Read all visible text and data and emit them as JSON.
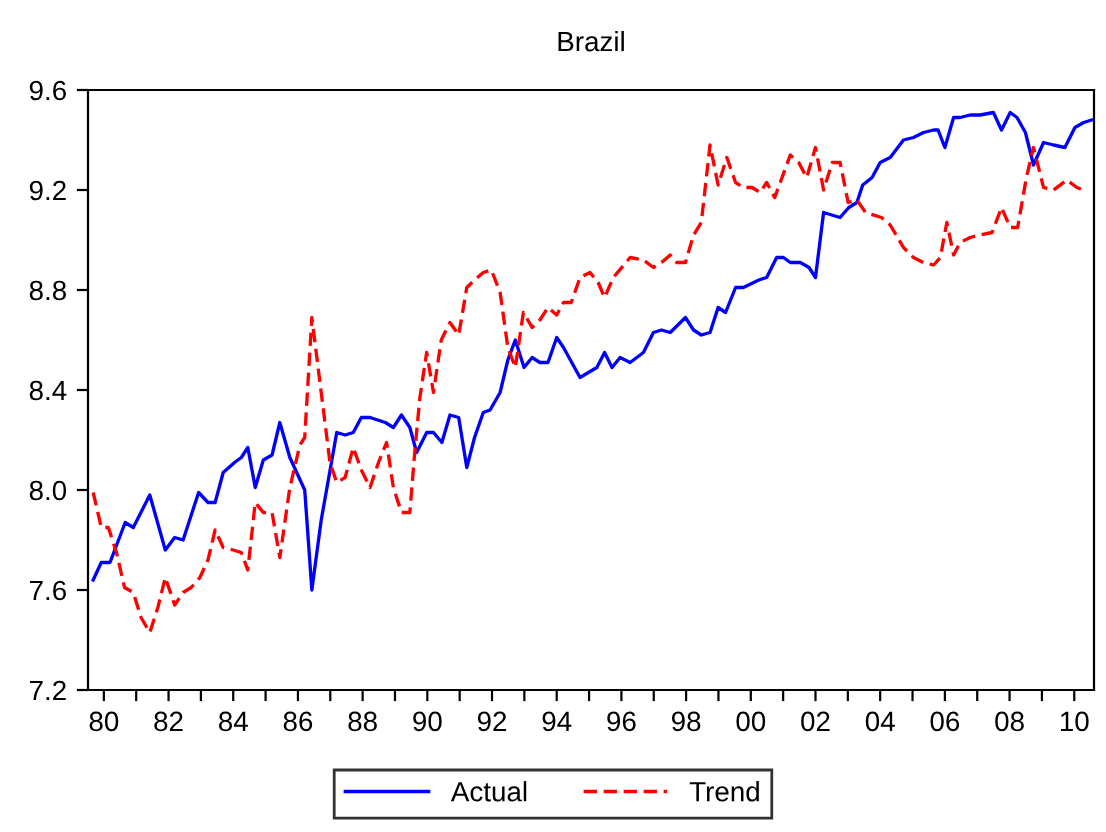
{
  "chart_data": {
    "type": "line",
    "title": "Brazil",
    "xlim": [
      1979.51,
      2010.61
    ],
    "xticks": [
      {
        "value": 1980,
        "label": "80"
      },
      {
        "value": 1981,
        "label": null
      },
      {
        "value": 1982,
        "label": "82"
      },
      {
        "value": 1983,
        "label": null
      },
      {
        "value": 1984,
        "label": "84"
      },
      {
        "value": 1985,
        "label": null
      },
      {
        "value": 1986,
        "label": "86"
      },
      {
        "value": 1987,
        "label": null
      },
      {
        "value": 1988,
        "label": "88"
      },
      {
        "value": 1989,
        "label": null
      },
      {
        "value": 1990,
        "label": "90"
      },
      {
        "value": 1991,
        "label": null
      },
      {
        "value": 1992,
        "label": "92"
      },
      {
        "value": 1993,
        "label": null
      },
      {
        "value": 1994,
        "label": "94"
      },
      {
        "value": 1995,
        "label": null
      },
      {
        "value": 1996,
        "label": "96"
      },
      {
        "value": 1997,
        "label": null
      },
      {
        "value": 1998,
        "label": "98"
      },
      {
        "value": 1999,
        "label": null
      },
      {
        "value": 2000,
        "label": "00"
      },
      {
        "value": 2001,
        "label": null
      },
      {
        "value": 2002,
        "label": "02"
      },
      {
        "value": 2003,
        "label": null
      },
      {
        "value": 2004,
        "label": "04"
      },
      {
        "value": 2005,
        "label": null
      },
      {
        "value": 2006,
        "label": "06"
      },
      {
        "value": 2007,
        "label": null
      },
      {
        "value": 2008,
        "label": "08"
      },
      {
        "value": 2009,
        "label": null
      },
      {
        "value": 2010,
        "label": "10"
      }
    ],
    "ylim": [
      7.2,
      9.6
    ],
    "yticks": [
      7.2,
      7.6,
      {
        "value": 8.0,
        "label": "8.0"
      },
      8.4,
      8.8,
      9.2,
      9.6
    ],
    "grid": false,
    "legend": "bottom",
    "series": [
      {
        "name": "Actual",
        "color": "#0000ff",
        "line_style": "solid",
        "x": [
          1979.67,
          1979.92,
          1980.19,
          1980.66,
          1980.91,
          1981.42,
          1981.9,
          1982.19,
          1982.45,
          1982.93,
          1983.22,
          1983.44,
          1983.69,
          1984.04,
          1984.25,
          1984.45,
          1984.68,
          1984.93,
          1985.2,
          1985.44,
          1985.75,
          1986.21,
          1986.43,
          1986.72,
          1987.2,
          1987.46,
          1987.71,
          1987.96,
          1988.23,
          1988.7,
          1988.95,
          1989.2,
          1989.46,
          1989.67,
          1989.98,
          1990.19,
          1990.45,
          1990.7,
          1990.97,
          1991.22,
          1991.46,
          1991.73,
          1991.94,
          1992.25,
          1992.49,
          1992.72,
          1992.99,
          1993.24,
          1993.48,
          1993.73,
          1994.0,
          1994.21,
          1994.72,
          1995.24,
          1995.48,
          1995.71,
          1995.96,
          1996.27,
          1996.68,
          1996.99,
          1997.24,
          1997.51,
          1997.98,
          1998.23,
          1998.47,
          1998.74,
          1998.99,
          1999.22,
          1999.53,
          1999.77,
          2000.25,
          2000.49,
          2000.8,
          2001.01,
          2001.22,
          2001.53,
          2001.8,
          2002.0,
          2002.25,
          2002.76,
          2003.03,
          2003.28,
          2003.46,
          2003.75,
          2004.0,
          2004.31,
          2004.72,
          2005.03,
          2005.34,
          2005.65,
          2005.79,
          2006.0,
          2006.27,
          2006.47,
          2006.78,
          2007.09,
          2007.5,
          2007.75,
          2008.02,
          2008.23,
          2008.49,
          2008.74,
          2009.05,
          2009.36,
          2009.71,
          2010.02,
          2010.29,
          2010.54
        ],
        "values": [
          7.64,
          7.71,
          7.71,
          7.87,
          7.85,
          7.98,
          7.76,
          7.81,
          7.8,
          7.99,
          7.95,
          7.95,
          8.07,
          8.11,
          8.13,
          8.17,
          8.01,
          8.12,
          8.14,
          8.27,
          8.13,
          8.0,
          7.6,
          7.88,
          8.23,
          8.22,
          8.23,
          8.29,
          8.29,
          8.27,
          8.25,
          8.3,
          8.25,
          8.15,
          8.23,
          8.23,
          8.19,
          8.3,
          8.29,
          8.09,
          8.21,
          8.31,
          8.32,
          8.39,
          8.52,
          8.6,
          8.49,
          8.53,
          8.51,
          8.51,
          8.61,
          8.57,
          8.45,
          8.49,
          8.55,
          8.49,
          8.53,
          8.51,
          8.55,
          8.63,
          8.64,
          8.63,
          8.69,
          8.64,
          8.62,
          8.63,
          8.73,
          8.71,
          8.81,
          8.81,
          8.84,
          8.85,
          8.93,
          8.93,
          8.91,
          8.91,
          8.89,
          8.85,
          9.11,
          9.09,
          9.13,
          9.15,
          9.22,
          9.25,
          9.31,
          9.33,
          9.4,
          9.41,
          9.43,
          9.44,
          9.44,
          9.37,
          9.49,
          9.49,
          9.5,
          9.5,
          9.51,
          9.44,
          9.51,
          9.49,
          9.43,
          9.3,
          9.39,
          9.38,
          9.37,
          9.45,
          9.47,
          9.48
        ]
      },
      {
        "name": "Trend",
        "color": "#ff0000",
        "line_style": "dashed",
        "x": [
          1979.67,
          1979.92,
          1980.14,
          1980.39,
          1980.64,
          1980.91,
          1981.15,
          1981.42,
          1981.67,
          1981.9,
          1982.19,
          1982.45,
          1982.7,
          1982.97,
          1983.22,
          1983.44,
          1983.69,
          1984.0,
          1984.25,
          1984.45,
          1984.68,
          1984.93,
          1985.2,
          1985.44,
          1985.75,
          1986.06,
          1986.21,
          1986.43,
          1986.72,
          1986.99,
          1987.2,
          1987.46,
          1987.71,
          1987.96,
          1988.23,
          1988.49,
          1988.74,
          1988.95,
          1989.2,
          1989.46,
          1989.61,
          1989.77,
          1989.98,
          1990.19,
          1990.43,
          1990.7,
          1990.97,
          1991.22,
          1991.46,
          1991.73,
          1991.98,
          1992.25,
          1992.49,
          1992.72,
          1992.97,
          1993.24,
          1993.48,
          1993.73,
          1994.0,
          1994.21,
          1994.45,
          1994.72,
          1995.03,
          1995.28,
          1995.48,
          1995.75,
          1996.27,
          1996.68,
          1996.99,
          1997.24,
          1997.51,
          1997.71,
          1997.98,
          1998.23,
          1998.47,
          1998.74,
          1998.99,
          1999.26,
          1999.53,
          1999.77,
          2000.04,
          2000.29,
          2000.49,
          2000.74,
          2001.22,
          2001.48,
          2001.73,
          2002.0,
          2002.25,
          2002.52,
          2002.76,
          2003.01,
          2003.28,
          2003.55,
          2004.04,
          2004.31,
          2004.72,
          2005.03,
          2005.34,
          2005.65,
          2005.86,
          2006.06,
          2006.27,
          2006.47,
          2006.78,
          2007.09,
          2007.46,
          2007.75,
          2008.02,
          2008.25,
          2008.52,
          2008.74,
          2009.05,
          2009.36,
          2009.77,
          2010.08,
          2010.29
        ],
        "values": [
          7.99,
          7.85,
          7.85,
          7.75,
          7.61,
          7.59,
          7.49,
          7.43,
          7.53,
          7.65,
          7.54,
          7.59,
          7.61,
          7.65,
          7.72,
          7.84,
          7.77,
          7.76,
          7.75,
          7.68,
          7.95,
          7.91,
          7.91,
          7.73,
          8.01,
          8.18,
          8.21,
          8.69,
          8.39,
          8.11,
          8.03,
          8.05,
          8.17,
          8.08,
          8.01,
          8.11,
          8.19,
          8.01,
          7.91,
          7.91,
          8.15,
          8.37,
          8.55,
          8.39,
          8.6,
          8.67,
          8.62,
          8.81,
          8.84,
          8.87,
          8.88,
          8.79,
          8.57,
          8.49,
          8.71,
          8.65,
          8.68,
          8.73,
          8.7,
          8.75,
          8.75,
          8.85,
          8.87,
          8.83,
          8.77,
          8.85,
          8.93,
          8.92,
          8.89,
          8.91,
          8.94,
          8.91,
          8.91,
          9.02,
          9.07,
          9.38,
          9.22,
          9.33,
          9.23,
          9.21,
          9.21,
          9.19,
          9.23,
          9.17,
          9.34,
          9.31,
          9.25,
          9.37,
          9.2,
          9.31,
          9.31,
          9.15,
          9.16,
          9.11,
          9.09,
          9.06,
          8.97,
          8.93,
          8.91,
          8.9,
          8.93,
          9.07,
          8.94,
          8.99,
          9.01,
          9.02,
          9.03,
          9.13,
          9.05,
          9.05,
          9.25,
          9.37,
          9.21,
          9.2,
          9.24,
          9.21,
          9.2
        ]
      }
    ]
  }
}
